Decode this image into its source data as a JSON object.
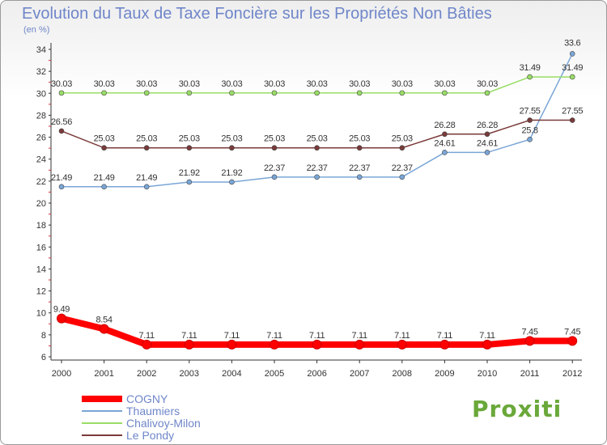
{
  "title": "Evolution du Taux de Taxe Foncière sur les Propriétés Non Bâties",
  "unit_label": "(en %)",
  "logo_text": "Proxiti",
  "chart_data": {
    "type": "line",
    "title": "Evolution du Taux de Taxe Foncière sur les Propriétés Non Bâties",
    "ylabel": "(en %)",
    "xlabel": "",
    "ylim": [
      6,
      34
    ],
    "yticks": [
      "6",
      "8",
      "10",
      "12",
      "14",
      "16",
      "18",
      "20",
      "22",
      "24",
      "26",
      "28",
      "30",
      "32",
      "34"
    ],
    "categories": [
      "2000",
      "2001",
      "2002",
      "2003",
      "2004",
      "2005",
      "2006",
      "2007",
      "2008",
      "2009",
      "2010",
      "2011",
      "2012"
    ],
    "series": [
      {
        "name": "COGNY",
        "color": "#ff0000",
        "values": [
          9.49,
          8.54,
          7.11,
          7.11,
          7.11,
          7.11,
          7.11,
          7.11,
          7.11,
          7.11,
          7.11,
          7.45,
          7.45
        ],
        "labels": [
          "9.49",
          "8.54",
          "7.11",
          "7.11",
          "7.11",
          "7.11",
          "7.11",
          "7.11",
          "7.11",
          "7.11",
          "7.11",
          "7.45",
          "7.45"
        ]
      },
      {
        "name": "Thaumiers",
        "color": "#7aa6d6",
        "values": [
          21.49,
          21.49,
          21.49,
          21.92,
          21.92,
          22.37,
          22.37,
          22.37,
          22.37,
          24.61,
          24.61,
          25.8,
          33.6
        ],
        "labels": [
          "21.49",
          "21.49",
          "21.49",
          "21.92",
          "21.92",
          "22.37",
          "22.37",
          "22.37",
          "22.37",
          "24.61",
          "24.61",
          "25.8",
          "33.6"
        ]
      },
      {
        "name": "Chalivoy-Milon",
        "color": "#99dd66",
        "values": [
          30.03,
          30.03,
          30.03,
          30.03,
          30.03,
          30.03,
          30.03,
          30.03,
          30.03,
          30.03,
          30.03,
          31.49,
          31.49
        ],
        "labels": [
          "30.03",
          "30.03",
          "30.03",
          "30.03",
          "30.03",
          "30.03",
          "30.03",
          "30.03",
          "30.03",
          "30.03",
          "30.03",
          "31.49",
          "31.49"
        ]
      },
      {
        "name": "Le Pondy",
        "color": "#7a3a3a",
        "values": [
          26.56,
          25.03,
          25.03,
          25.03,
          25.03,
          25.03,
          25.03,
          25.03,
          25.03,
          26.28,
          26.28,
          27.55,
          27.55
        ],
        "labels": [
          "26.56",
          "25.03",
          "25.03",
          "25.03",
          "25.03",
          "25.03",
          "25.03",
          "25.03",
          "25.03",
          "26.28",
          "26.28",
          "27.55",
          "27.55"
        ]
      }
    ],
    "legend_position": "bottom-left",
    "grid": false
  }
}
